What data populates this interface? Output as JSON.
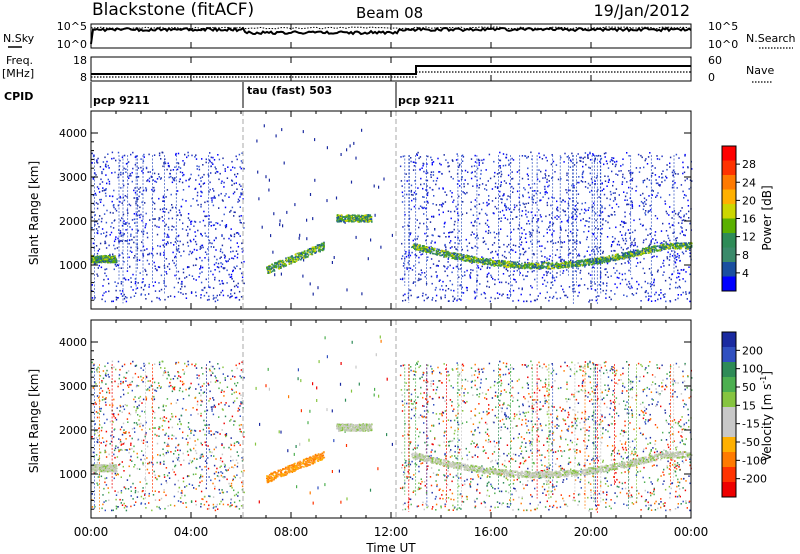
{
  "header": {
    "title": "Blackstone (fitACF)",
    "beam": "Beam 08",
    "date": "19/Jan/2012"
  },
  "strips": {
    "nsky_label": "N.Sky",
    "nsky_ticks": [
      "10^5",
      "10^0"
    ],
    "nsearch_label": "N.Search",
    "nsearch_ticks": [
      "10^5",
      "10^0"
    ],
    "freq_label": "Freq.",
    "freq_unit": "[MHz]",
    "freq_ticks": [
      "18",
      "8"
    ],
    "nave_label": "Nave",
    "nave_ticks": [
      "60",
      "0"
    ],
    "cpid_label": "CPID",
    "cpid_segments": [
      {
        "label": "pcp 9211",
        "start": 0.0,
        "end": 6.1
      },
      {
        "label": "tau (fast) 503",
        "start": 6.1,
        "end": 12.2
      },
      {
        "label": "pcp 9211",
        "start": 12.2,
        "end": 24.0
      }
    ]
  },
  "axes": {
    "x_label": "Time UT",
    "x_ticks": [
      "00:00",
      "04:00",
      "08:00",
      "12:00",
      "16:00",
      "20:00",
      "00:00"
    ],
    "y_label": "Slant Range [km]",
    "y_ticks": [
      "1000",
      "2000",
      "3000",
      "4000"
    ]
  },
  "colorbars": {
    "power": {
      "label": "Power [dB]",
      "ticks": [
        "28",
        "24",
        "20",
        "16",
        "12",
        "8",
        "4"
      ],
      "colors": [
        "#ff0000",
        "#ff3300",
        "#ff7a00",
        "#ffb000",
        "#ccd600",
        "#5ab000",
        "#2e8b57",
        "#3a8a6a",
        "#1a4fa0",
        "#0000ff"
      ]
    },
    "velocity": {
      "label": "Velocity [m s",
      "label_sup": "-1",
      "label_close": "]",
      "ticks": [
        "200",
        "100",
        "50",
        "15",
        "-15",
        "-50",
        "-100",
        "-200"
      ],
      "colors": [
        "#1a2aa0",
        "#3050c0",
        "#2e8b57",
        "#4caf50",
        "#86c440",
        "#c8c8c8",
        "#c8c8c8",
        "#ffb000",
        "#ff7a00",
        "#ff3300",
        "#ee0000"
      ]
    }
  },
  "chart_data": {
    "type": "heatmap",
    "x_unit": "hours UT",
    "xlim": [
      0,
      24
    ],
    "ylim": [
      0,
      4500
    ],
    "features": [
      {
        "type": "backscatter_band",
        "x_start": 0.0,
        "x_end": 1.0,
        "range_start_km": 1100,
        "range_end_km": 1200
      },
      {
        "type": "backscatter_band",
        "x_start": 7.0,
        "x_end": 9.3,
        "range_start_km": 900,
        "range_end_km": 1450
      },
      {
        "type": "backscatter_band",
        "x_start": 9.8,
        "x_end": 11.2,
        "range_start_km": 2000,
        "range_end_km": 2150
      },
      {
        "type": "backscatter_band",
        "x_start": 12.8,
        "x_end": 24.0,
        "range_start_km": 1000,
        "range_end_km": 1500
      }
    ]
  }
}
